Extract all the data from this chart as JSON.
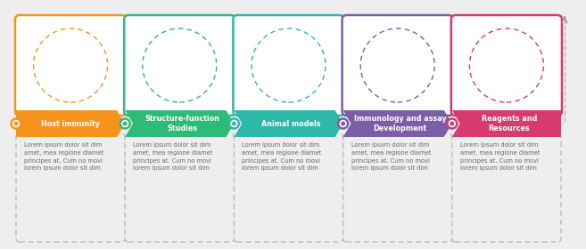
{
  "steps": [
    {
      "title": "Host immunity",
      "color": "#F7941D",
      "text": "Lorem ipsum dolor sit dim\namet, mea regione diamet\nprincipes at. Cum no movi\nlorem ipsum dolor sit dim"
    },
    {
      "title": "Structure-function\nStudies",
      "color": "#2EBB77",
      "text": "Lorem ipsum dolor sit dim\namet, mea regione diamet\nprincipes at. Cum no movi\nlorem ipsum dolor sit dim"
    },
    {
      "title": "Animal models",
      "color": "#2EB8AA",
      "text": "Lorem ipsum dolor sit dim\namet, mea regione diamet\nprincipes at. Cum no movi\nlorem ipsum dolor sit dim"
    },
    {
      "title": "Immunology and assay\nDevelopment",
      "color": "#7B5EA7",
      "text": "Lorem ipsum dolor sit dim\namet, mea regione diamet\nprincipes at. Cum no movi\nlorem ipsum dolor sit dim"
    },
    {
      "title": "Reagents and\nResources",
      "color": "#D63B6E",
      "text": "Lorem ipsum dolor sit dim\namet, mea regione diamet\nprincipes at. Cum no movi\nlorem ipsum dolor sit dim"
    }
  ],
  "bg_color": "#EEEEEE",
  "text_color": "#666666",
  "title_text_color": "#FFFFFF",
  "connector_color": "#BBBBBB",
  "figsize": [
    6.57,
    2.8
  ],
  "dpi": 100
}
